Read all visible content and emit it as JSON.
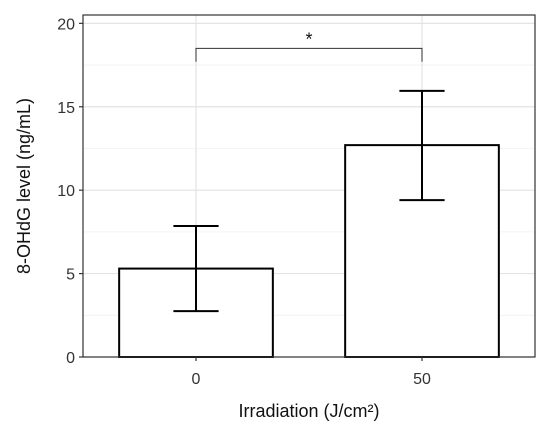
{
  "chart_data": {
    "type": "bar",
    "title": "",
    "xlabel": "Irradiation (J/cm²)",
    "ylabel": "8-OHdG level (ng/mL)",
    "categories": [
      "0",
      "50"
    ],
    "values": [
      5.3,
      12.7
    ],
    "error_low": [
      2.75,
      9.4
    ],
    "error_high": [
      7.85,
      15.95
    ],
    "ylim": [
      0,
      20.5
    ],
    "yticks": [
      0,
      5,
      10,
      15,
      20
    ],
    "grid": true,
    "bar_fill": "#ffffff",
    "bar_stroke": "#000000",
    "significance": {
      "from": "0",
      "to": "50",
      "label": "*",
      "y": 18.5,
      "drop": 0.8
    }
  }
}
